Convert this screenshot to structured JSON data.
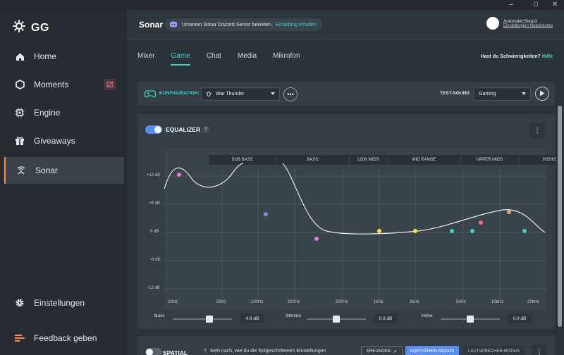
{
  "window": {
    "minimize": "–",
    "maximize": "☐",
    "close": "✕"
  },
  "app": {
    "logo_text": "GG"
  },
  "sidebar": {
    "items": [
      {
        "label": "Home",
        "icon": "home-icon"
      },
      {
        "label": "Moments",
        "icon": "hexagon-icon"
      },
      {
        "label": "Engine",
        "icon": "chip-icon"
      },
      {
        "label": "Giveaways",
        "icon": "gift-icon"
      },
      {
        "label": "Sonar",
        "icon": "sonar-icon"
      }
    ],
    "bottom": [
      {
        "label": "Einstellungen",
        "icon": "gear-icon"
      },
      {
        "label": "Feedback geben",
        "icon": "feedback-icon"
      }
    ]
  },
  "header": {
    "title": "Sonar",
    "discord_text": "Unserem Sonar Discord-Server beitreten",
    "discord_link": "Einladung erhalten",
    "user_name": "AutomaticShop3",
    "user_link": "Einstellungen Nutzerkonto"
  },
  "tabs": [
    {
      "label": "Mixer"
    },
    {
      "label": "Game"
    },
    {
      "label": "Chat"
    },
    {
      "label": "Media"
    },
    {
      "label": "Mikrofon"
    }
  ],
  "help": {
    "question": "Hast du Schwierigkeiten?",
    "link": "Hilfe"
  },
  "config": {
    "label": "KONFIGURATION:",
    "selected": "War Thunder",
    "more": "•••",
    "test_sound_label": "TEST-SOUND",
    "test_sound_selected": "Gaming"
  },
  "equalizer": {
    "title": "EQUALIZER",
    "help": "?",
    "bands": [
      "SUB BASS",
      "BASS",
      "LOW MIDS",
      "MID RANGE",
      "UPPER MIDS",
      "HIGHS"
    ],
    "db_labels": [
      "+12 dB",
      "+6 dB",
      "0 dB",
      "-6 dB",
      "-12 dB"
    ],
    "hz_labels": [
      "20Hz",
      "50Hz",
      "100Hz",
      "200Hz",
      "500Hz",
      "1kHz",
      "2kHz",
      "5kHz",
      "10kHz",
      "20kHz"
    ],
    "sliders": [
      {
        "label": "Bass",
        "value": "4.9 dB",
        "level": 0.62
      },
      {
        "label": "Stimme",
        "value": "0.0 dB",
        "level": 0.5
      },
      {
        "label": "Höhe",
        "value": "0.0 dB",
        "level": 0.5
      }
    ],
    "points": [
      {
        "color": "#e87ad8"
      },
      {
        "color": "#7b8ff0"
      },
      {
        "color": "#e87ad8"
      },
      {
        "color": "#f2e64a"
      },
      {
        "color": "#f2e64a"
      },
      {
        "color": "#3fd5c7"
      },
      {
        "color": "#3fd5c7"
      },
      {
        "color": "#f07070"
      },
      {
        "color": "#f0a060"
      },
      {
        "color": "#3fd5c7"
      }
    ]
  },
  "spatial": {
    "title": "SPATIAL",
    "hint": "Sieh nach, wie du die fortgeschrittenen Einstellungen",
    "explore": "ERKUNDEN",
    "headphone_mode": "KOPFHÖRER-MODUS",
    "speaker_mode": "LAUTSPRECHER-MODUS"
  },
  "colors": {
    "accent": "#3fd5c7",
    "active_indicator": "#ff8a3d",
    "toggle_on": "#5a8cf0"
  }
}
